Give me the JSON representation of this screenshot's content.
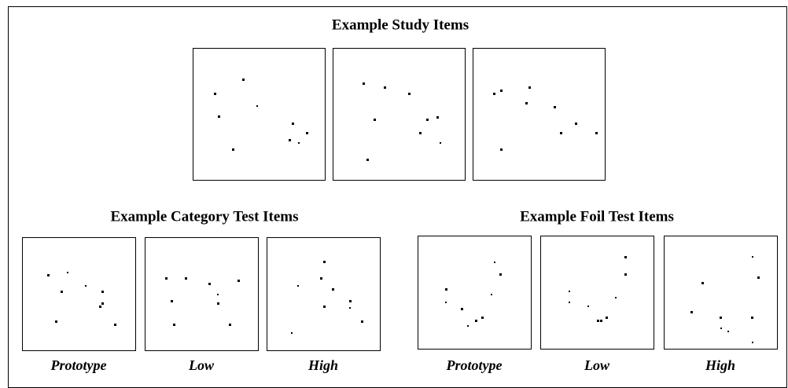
{
  "study": {
    "title": "Example Study Items"
  },
  "category": {
    "title": "Example Category Test Items",
    "labels": [
      "Prototype",
      "Low",
      "High"
    ]
  },
  "foil": {
    "title": "Example Foil Test Items",
    "labels": [
      "Prototype",
      "Low",
      "High"
    ]
  }
}
